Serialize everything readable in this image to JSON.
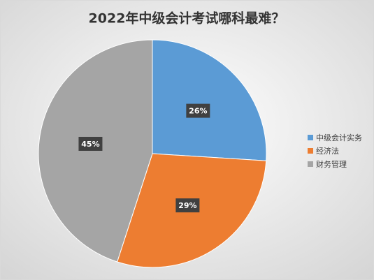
{
  "chart_data": {
    "type": "pie",
    "title": "2022年中级会计考试哪科最难？",
    "categories": [
      "中级会计实务",
      "经济法",
      "财务管理"
    ],
    "values": [
      26,
      29,
      45
    ],
    "value_labels": [
      "26%",
      "29%",
      "45%"
    ],
    "colors": [
      "#5b9bd5",
      "#ed7d31",
      "#a5a5a5"
    ],
    "legend": "right"
  }
}
